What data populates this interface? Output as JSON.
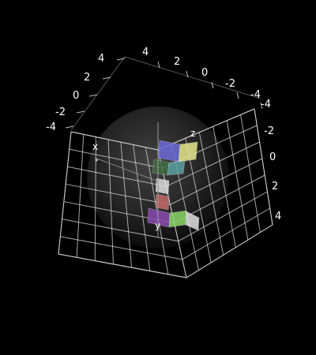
{
  "scene": {
    "background_color": "#000000",
    "grid_color": "#cfcfcf",
    "sphere_color": "#3a3a3a",
    "axis_labels": {
      "x": "x",
      "y": "y",
      "z": "z"
    },
    "ticks": {
      "top_left_edge": [
        "4",
        "2",
        "0",
        "-2",
        "-4"
      ],
      "top_back_edge": [
        "4",
        "2",
        "0",
        "-2",
        "-4"
      ],
      "right_edge": [
        "-4",
        "-2",
        "0",
        "2",
        "4"
      ]
    },
    "blocks": [
      {
        "name": "block-top-left",
        "color": "#6b6bd6"
      },
      {
        "name": "block-top-right",
        "color": "#e6e68c"
      },
      {
        "name": "block-upper-green",
        "color": "#3f6b3f"
      },
      {
        "name": "block-upper-teal",
        "color": "#5aa0a0"
      },
      {
        "name": "block-middle-white",
        "color": "#dcdcdc"
      },
      {
        "name": "block-middle-red",
        "color": "#c46a6a"
      },
      {
        "name": "block-lower-purple",
        "color": "#8a4ab0"
      },
      {
        "name": "block-lower-green",
        "color": "#8ad66b"
      },
      {
        "name": "block-lower-white",
        "color": "#e0e0e0"
      }
    ]
  }
}
